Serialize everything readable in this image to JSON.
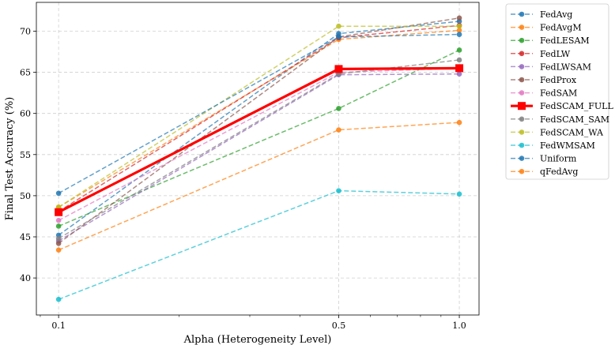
{
  "chart_data": {
    "type": "line",
    "title": "",
    "xlabel": "Alpha (Heterogeneity Level)",
    "ylabel": "Final Test Accuracy (%)",
    "xscale": "log",
    "x": [
      0.1,
      0.5,
      1.0
    ],
    "x_tick_labels": [
      "0.1",
      "0.5",
      "1.0"
    ],
    "xlim": [
      0.088,
      1.12
    ],
    "ylim": [
      35.5,
      73.5
    ],
    "y_ticks": [
      40,
      45,
      50,
      55,
      60,
      65,
      70
    ],
    "grid": true,
    "legend_position": "outside-right",
    "series": [
      {
        "name": "FedAvg",
        "color": "#1f77b4",
        "values": [
          45.2,
          69.7,
          71.2
        ],
        "highlight": false
      },
      {
        "name": "FedAvgM",
        "color": "#ff7f0e",
        "values": [
          48.6,
          69.0,
          70.1
        ],
        "highlight": false
      },
      {
        "name": "FedLESAM",
        "color": "#2ca02c",
        "values": [
          46.3,
          60.6,
          67.7
        ],
        "highlight": false
      },
      {
        "name": "FedLW",
        "color": "#d62728",
        "values": [
          48.1,
          69.2,
          70.7
        ],
        "highlight": false
      },
      {
        "name": "FedLWSAM",
        "color": "#9467bd",
        "values": [
          44.5,
          64.7,
          64.8
        ],
        "highlight": false
      },
      {
        "name": "FedProx",
        "color": "#8c564b",
        "values": [
          44.2,
          69.3,
          71.6
        ],
        "highlight": false
      },
      {
        "name": "FedSAM",
        "color": "#e377c2",
        "values": [
          47.0,
          65.0,
          65.5
        ],
        "highlight": false
      },
      {
        "name": "FedSCAM_FULL",
        "color": "#ff0000",
        "values": [
          48.0,
          65.4,
          65.5
        ],
        "highlight": true
      },
      {
        "name": "FedSCAM_SAM",
        "color": "#7f7f7f",
        "values": [
          44.8,
          64.8,
          66.5
        ],
        "highlight": false
      },
      {
        "name": "FedSCAM_WA",
        "color": "#bcbd22",
        "values": [
          48.6,
          70.6,
          70.6
        ],
        "highlight": false
      },
      {
        "name": "FedWMSAM",
        "color": "#17becf",
        "values": [
          37.4,
          50.6,
          50.2
        ],
        "highlight": false
      },
      {
        "name": "Uniform",
        "color": "#1f77b4",
        "values": [
          50.3,
          69.3,
          69.6
        ],
        "highlight": false
      },
      {
        "name": "qFedAvg",
        "color": "#ff7f0e",
        "values": [
          43.4,
          58.0,
          58.9
        ],
        "highlight": false
      }
    ]
  }
}
